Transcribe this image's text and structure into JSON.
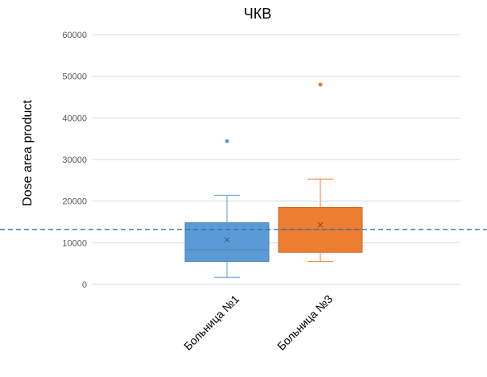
{
  "chart_data": {
    "type": "boxplot",
    "title": "ЧКВ",
    "xlabel": "",
    "ylabel": "Dose area product",
    "ylim": [
      0,
      60000
    ],
    "yticks": [
      0,
      10000,
      20000,
      30000,
      40000,
      50000,
      60000
    ],
    "ytick_labels": [
      "0",
      "10000",
      "20000",
      "30000",
      "40000",
      "50000",
      "60000"
    ],
    "grid": true,
    "legend": "none",
    "reference_line": {
      "value": 13200,
      "color": "#2e75b6",
      "style": "dashed"
    },
    "categories": [
      "Больница №1",
      "Больница №3"
    ],
    "series": [
      {
        "color": "#5b9bd5",
        "stats": {
          "min": 1700,
          "q1": 5500,
          "median": 8300,
          "q3": 14800,
          "max": 21400,
          "mean": 10700
        },
        "outliers": [
          34400
        ]
      },
      {
        "color": "#ed7d31",
        "stats": {
          "min": 5500,
          "q1": 7700,
          "median": 13200,
          "q3": 18500,
          "max": 25300,
          "mean": 14300
        },
        "outliers": [
          48000
        ]
      }
    ]
  }
}
